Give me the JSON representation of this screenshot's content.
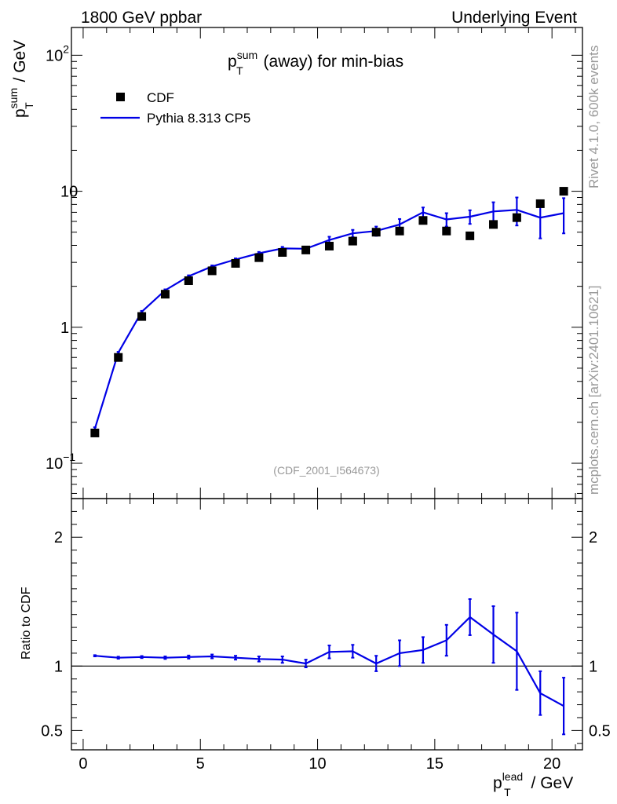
{
  "header": {
    "left": "1800 GeV ppbar",
    "right": "Underlying Event"
  },
  "side_labels": {
    "rivet": "Rivet 4.1.0,  600k events",
    "mcplots": "mcplots.cern.ch [arXiv:2401.10621]"
  },
  "colors": {
    "mc": "#0000e6",
    "data": "#000000",
    "watermark": "#999999"
  },
  "chart_data": [
    {
      "type": "scatter",
      "panel": "main",
      "title_main": "p",
      "title_sup": "sum",
      "title_sub": "T",
      "title_rest": " (away) for min-bias",
      "ylabel_main": "p",
      "ylabel_sup": "sum",
      "ylabel_sub": "T",
      "ylabel_rest": " / GeV",
      "yscale": "log",
      "ylim": [
        0.055,
        160
      ],
      "xlim": [
        -0.5,
        21.3
      ],
      "x_ticks": [
        0,
        5,
        10,
        15,
        20
      ],
      "y_tick_labels": [
        {
          "value": 0.1,
          "base": "10",
          "exp": "−1"
        },
        {
          "value": 1,
          "base": "1",
          "exp": ""
        },
        {
          "value": 10,
          "base": "10",
          "exp": ""
        },
        {
          "value": 100,
          "base": "10",
          "exp": "2"
        }
      ],
      "watermark": "(CDF_2001_I564673)",
      "x": [
        0.5,
        1.5,
        2.5,
        3.5,
        4.5,
        5.5,
        6.5,
        7.5,
        8.5,
        9.5,
        10.5,
        11.5,
        12.5,
        13.5,
        14.5,
        15.5,
        16.5,
        17.5,
        18.5,
        19.5,
        20.5
      ],
      "series": [
        {
          "name": "CDF",
          "style": "markers",
          "values": [
            0.167,
            0.6,
            1.2,
            1.75,
            2.2,
            2.6,
            2.95,
            3.25,
            3.55,
            3.7,
            3.95,
            4.3,
            5.0,
            5.1,
            6.1,
            5.1,
            4.7,
            5.7,
            6.4,
            8.1,
            10.0
          ]
        },
        {
          "name": "Pythia 8.313 CP5",
          "style": "line",
          "values": [
            0.18,
            0.65,
            1.3,
            1.87,
            2.37,
            2.8,
            3.15,
            3.5,
            3.8,
            3.78,
            4.38,
            4.9,
            5.1,
            5.7,
            7.0,
            6.2,
            6.5,
            7.1,
            7.3,
            6.4,
            6.9
          ],
          "errors": [
            0.004,
            0.01,
            0.02,
            0.03,
            0.04,
            0.05,
            0.06,
            0.08,
            0.1,
            0.12,
            0.25,
            0.3,
            0.4,
            0.55,
            0.6,
            0.7,
            0.75,
            1.2,
            1.7,
            1.9,
            2.0
          ]
        }
      ]
    },
    {
      "type": "line",
      "panel": "ratio",
      "ylabel": "Ratio to CDF",
      "ylim": [
        0.35,
        2.3
      ],
      "y_ticks": [
        0.5,
        1,
        2
      ],
      "y_tick_labels": [
        "0.5",
        "1",
        "2"
      ],
      "xlabel_main": "p",
      "xlabel_sup": "lead",
      "xlabel_sub": "T",
      "xlabel_rest": " / GeV",
      "reference": 1,
      "x": [
        0.5,
        1.5,
        2.5,
        3.5,
        4.5,
        5.5,
        6.5,
        7.5,
        8.5,
        9.5,
        10.5,
        11.5,
        12.5,
        13.5,
        14.5,
        15.5,
        16.5,
        17.5,
        18.5,
        19.5,
        20.5
      ],
      "series": [
        {
          "name": "Pythia 8.313 CP5 / CDF",
          "values": [
            1.08,
            1.065,
            1.07,
            1.065,
            1.07,
            1.075,
            1.065,
            1.055,
            1.05,
            1.02,
            1.11,
            1.115,
            1.02,
            1.1,
            1.125,
            1.2,
            1.38,
            1.245,
            1.115,
            0.79,
            0.69
          ],
          "errors": [
            0.005,
            0.008,
            0.008,
            0.01,
            0.012,
            0.015,
            0.015,
            0.02,
            0.025,
            0.03,
            0.05,
            0.05,
            0.06,
            0.1,
            0.1,
            0.12,
            0.14,
            0.22,
            0.3,
            0.17,
            0.22
          ]
        }
      ]
    }
  ]
}
